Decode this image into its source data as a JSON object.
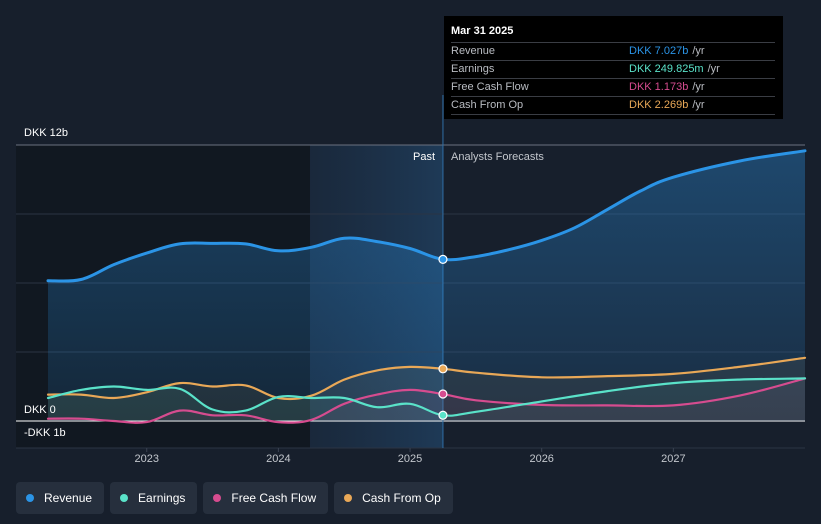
{
  "chart_data": {
    "type": "line",
    "currency": "DKK",
    "y_labels": {
      "top": "DKK 12b",
      "zero": "DKK 0",
      "bottom": "-DKK 1b"
    },
    "ylim": [
      -1,
      12
    ],
    "xlim": [
      2022.25,
      2028.0
    ],
    "past_label": "Past",
    "forecast_label": "Analysts Forecasts",
    "divider_x": 2025.25,
    "x_ticks": [
      {
        "value": 2023,
        "label": "2023"
      },
      {
        "value": 2024,
        "label": "2024"
      },
      {
        "value": 2025,
        "label": "2025"
      },
      {
        "value": 2026,
        "label": "2026"
      },
      {
        "value": 2027,
        "label": "2027"
      }
    ],
    "series": [
      {
        "name": "Revenue",
        "color": "#2b94e6",
        "fill": true,
        "marker_value": 7.027,
        "points": [
          [
            2022.25,
            6.1
          ],
          [
            2022.5,
            6.15
          ],
          [
            2022.75,
            6.8
          ],
          [
            2023.0,
            7.3
          ],
          [
            2023.25,
            7.7
          ],
          [
            2023.5,
            7.72
          ],
          [
            2023.75,
            7.7
          ],
          [
            2024.0,
            7.4
          ],
          [
            2024.25,
            7.55
          ],
          [
            2024.5,
            7.95
          ],
          [
            2024.75,
            7.8
          ],
          [
            2025.0,
            7.5
          ],
          [
            2025.25,
            7.03
          ],
          [
            2025.5,
            7.15
          ],
          [
            2025.75,
            7.45
          ],
          [
            2026.0,
            7.85
          ],
          [
            2026.25,
            8.4
          ],
          [
            2026.5,
            9.2
          ],
          [
            2026.75,
            10.0
          ],
          [
            2027.0,
            10.6
          ],
          [
            2027.5,
            11.3
          ],
          [
            2028.0,
            11.75
          ]
        ]
      },
      {
        "name": "Earnings",
        "color": "#5ae2c9",
        "fill": false,
        "marker_value": 0.25,
        "points": [
          [
            2022.25,
            1.0
          ],
          [
            2022.5,
            1.35
          ],
          [
            2022.75,
            1.5
          ],
          [
            2023.0,
            1.35
          ],
          [
            2023.25,
            1.4
          ],
          [
            2023.5,
            0.5
          ],
          [
            2023.75,
            0.45
          ],
          [
            2024.0,
            1.05
          ],
          [
            2024.25,
            1.0
          ],
          [
            2024.5,
            1.0
          ],
          [
            2024.75,
            0.6
          ],
          [
            2025.0,
            0.75
          ],
          [
            2025.25,
            0.25
          ],
          [
            2025.5,
            0.4
          ],
          [
            2026.0,
            0.85
          ],
          [
            2026.5,
            1.3
          ],
          [
            2027.0,
            1.65
          ],
          [
            2027.5,
            1.8
          ],
          [
            2028.0,
            1.85
          ]
        ]
      },
      {
        "name": "Free Cash Flow",
        "color": "#d64c8f",
        "fill": false,
        "marker_value": 1.173,
        "points": [
          [
            2022.25,
            0.1
          ],
          [
            2022.5,
            0.1
          ],
          [
            2022.75,
            0.0
          ],
          [
            2023.0,
            -0.05
          ],
          [
            2023.25,
            0.45
          ],
          [
            2023.5,
            0.25
          ],
          [
            2023.75,
            0.25
          ],
          [
            2024.0,
            -0.05
          ],
          [
            2024.25,
            0.05
          ],
          [
            2024.5,
            0.75
          ],
          [
            2024.75,
            1.15
          ],
          [
            2025.0,
            1.35
          ],
          [
            2025.25,
            1.17
          ],
          [
            2025.5,
            0.9
          ],
          [
            2026.0,
            0.7
          ],
          [
            2026.5,
            0.68
          ],
          [
            2027.0,
            0.68
          ],
          [
            2027.5,
            1.1
          ],
          [
            2028.0,
            1.85
          ]
        ]
      },
      {
        "name": "Cash From Op",
        "color": "#e9a857",
        "fill": false,
        "marker_value": 2.269,
        "points": [
          [
            2022.25,
            1.15
          ],
          [
            2022.5,
            1.15
          ],
          [
            2022.75,
            1.0
          ],
          [
            2023.0,
            1.25
          ],
          [
            2023.25,
            1.65
          ],
          [
            2023.5,
            1.5
          ],
          [
            2023.75,
            1.55
          ],
          [
            2024.0,
            1.0
          ],
          [
            2024.25,
            1.1
          ],
          [
            2024.5,
            1.8
          ],
          [
            2024.75,
            2.2
          ],
          [
            2025.0,
            2.35
          ],
          [
            2025.25,
            2.27
          ],
          [
            2025.5,
            2.1
          ],
          [
            2026.0,
            1.9
          ],
          [
            2026.5,
            1.95
          ],
          [
            2027.0,
            2.05
          ],
          [
            2027.5,
            2.35
          ],
          [
            2028.0,
            2.75
          ]
        ]
      }
    ]
  },
  "tooltip": {
    "date": "Mar 31 2025",
    "rows": [
      {
        "label": "Revenue",
        "value": "DKK 7.027b",
        "unit": "/yr",
        "color": "#2b94e6"
      },
      {
        "label": "Earnings",
        "value": "DKK 249.825m",
        "unit": "/yr",
        "color": "#5ae2c9"
      },
      {
        "label": "Free Cash Flow",
        "value": "DKK 1.173b",
        "unit": "/yr",
        "color": "#d64c8f"
      },
      {
        "label": "Cash From Op",
        "value": "DKK 2.269b",
        "unit": "/yr",
        "color": "#e9a857"
      }
    ]
  },
  "legend": {
    "items": [
      {
        "label": "Revenue",
        "color": "#2b94e6"
      },
      {
        "label": "Earnings",
        "color": "#5ae2c9"
      },
      {
        "label": "Free Cash Flow",
        "color": "#d64c8f"
      },
      {
        "label": "Cash From Op",
        "color": "#e9a857"
      }
    ]
  }
}
